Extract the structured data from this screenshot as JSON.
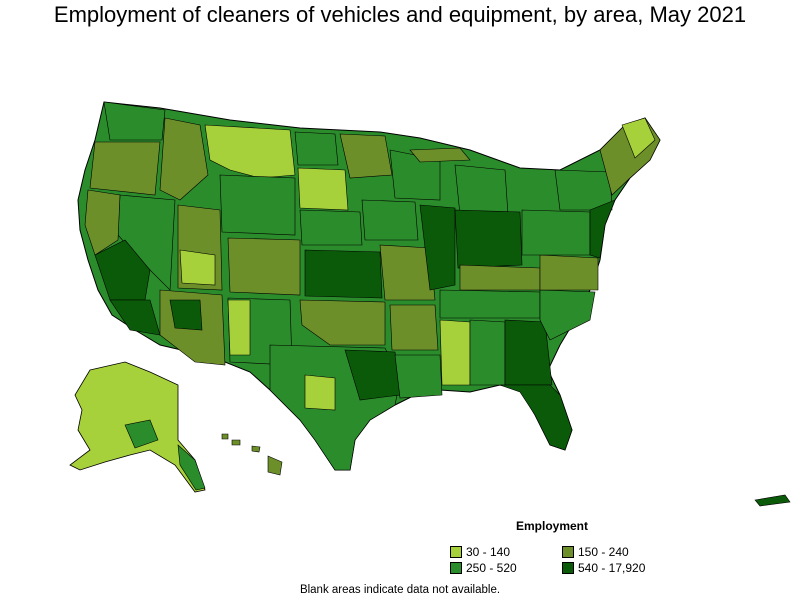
{
  "title": "Employment of cleaners of vehicles and equipment, by area, May 2021",
  "legend": {
    "title": "Employment",
    "items": [
      {
        "label": "30 - 140",
        "color": "#a6d13a"
      },
      {
        "label": "150 - 240",
        "color": "#6d8f2a"
      },
      {
        "label": "250 - 520",
        "color": "#2b8c2b"
      },
      {
        "label": "540 - 17,920",
        "color": "#0a5a0a"
      }
    ]
  },
  "note": "Blank areas indicate data not available.",
  "colors": {
    "border": "#000000",
    "light": "#a6d13a",
    "olive": "#6d8f2a",
    "medium": "#2b8c2b",
    "dark": "#0a5a0a"
  }
}
